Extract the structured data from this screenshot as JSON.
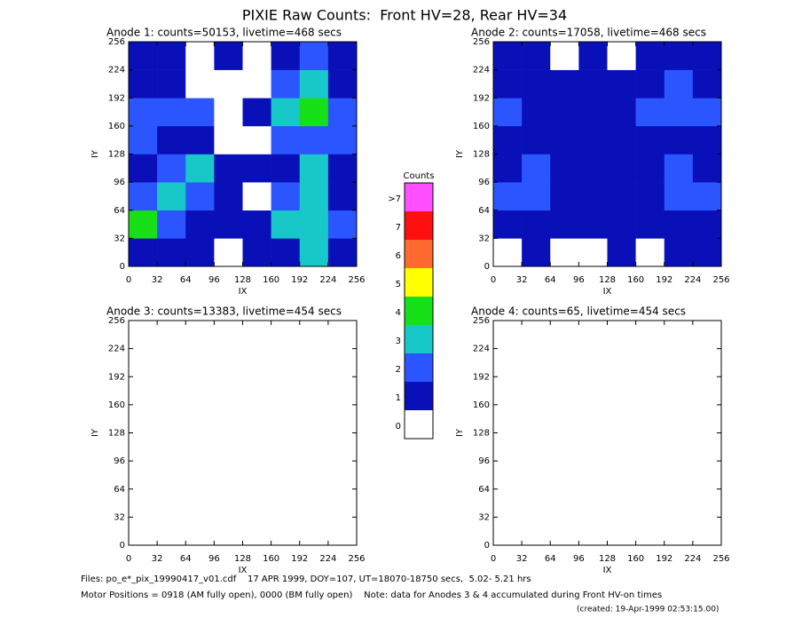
{
  "title": "PIXIE Raw Counts:  Front HV=28, Rear HV=34",
  "colorbar": {
    "title": "Counts",
    "labels": [
      0,
      1,
      2,
      3,
      4,
      5,
      6,
      7,
      ">7"
    ],
    "colors": [
      "#ffffff",
      "#0a10b8",
      "#2a55ff",
      "#18c8c8",
      "#18e018",
      "#ffff00",
      "#ff6a30",
      "#ff1010",
      "#ff50ff"
    ]
  },
  "chart_data": [
    {
      "type": "heatmap",
      "title": "Anode 1: counts=50153, livetime=468 secs",
      "xlabel": "IX",
      "ylabel": "IY",
      "xlim": [
        0,
        256
      ],
      "ylim": [
        0,
        256
      ],
      "xticks": [
        0,
        32,
        64,
        96,
        128,
        160,
        192,
        224,
        256
      ],
      "yticks": [
        0,
        32,
        64,
        96,
        128,
        160,
        192,
        224,
        256
      ],
      "z": [
        [
          1,
          1,
          1,
          0,
          1,
          1,
          3,
          1
        ],
        [
          4,
          2,
          1,
          1,
          1,
          3,
          3,
          2
        ],
        [
          2,
          3,
          2,
          1,
          0,
          2,
          3,
          1
        ],
        [
          1,
          2,
          3,
          1,
          1,
          1,
          3,
          1
        ],
        [
          2,
          1,
          1,
          0,
          0,
          2,
          2,
          2
        ],
        [
          2,
          2,
          2,
          0,
          1,
          3,
          4,
          2
        ],
        [
          1,
          1,
          0,
          0,
          0,
          2,
          3,
          1
        ],
        [
          1,
          1,
          0,
          1,
          0,
          1,
          2,
          1
        ]
      ]
    },
    {
      "type": "heatmap",
      "title": "Anode 2: counts=17058, livetime=468 secs",
      "xlabel": "IX",
      "ylabel": "IY",
      "xlim": [
        0,
        256
      ],
      "ylim": [
        0,
        256
      ],
      "xticks": [
        0,
        32,
        64,
        96,
        128,
        160,
        192,
        224,
        256
      ],
      "yticks": [
        0,
        32,
        64,
        96,
        128,
        160,
        192,
        224,
        256
      ],
      "z": [
        [
          0,
          1,
          0,
          0,
          1,
          0,
          1,
          1
        ],
        [
          1,
          1,
          1,
          1,
          1,
          1,
          1,
          1
        ],
        [
          2,
          2,
          1,
          1,
          1,
          1,
          2,
          2
        ],
        [
          1,
          2,
          1,
          1,
          1,
          1,
          2,
          1
        ],
        [
          1,
          1,
          1,
          1,
          1,
          1,
          1,
          1
        ],
        [
          2,
          1,
          1,
          1,
          1,
          2,
          2,
          2
        ],
        [
          1,
          1,
          1,
          1,
          1,
          1,
          2,
          1
        ],
        [
          1,
          1,
          0,
          1,
          0,
          1,
          1,
          1
        ]
      ]
    },
    {
      "type": "heatmap",
      "title": "Anode 3: counts=13383, livetime=454 secs",
      "xlabel": "IX",
      "ylabel": "IY",
      "xlim": [
        0,
        256
      ],
      "ylim": [
        0,
        256
      ],
      "xticks": [
        0,
        32,
        64,
        96,
        128,
        160,
        192,
        224,
        256
      ],
      "yticks": [
        0,
        32,
        64,
        96,
        128,
        160,
        192,
        224,
        256
      ],
      "z": [
        [
          0,
          0,
          0,
          0,
          0,
          0,
          0,
          0
        ],
        [
          0,
          0,
          0,
          0,
          0,
          0,
          0,
          0
        ],
        [
          0,
          0,
          0,
          0,
          0,
          0,
          0,
          0
        ],
        [
          0,
          0,
          0,
          0,
          0,
          0,
          0,
          0
        ],
        [
          0,
          0,
          0,
          0,
          0,
          0,
          0,
          0
        ],
        [
          0,
          0,
          0,
          0,
          0,
          0,
          0,
          0
        ],
        [
          0,
          0,
          0,
          0,
          0,
          0,
          0,
          0
        ],
        [
          0,
          0,
          0,
          0,
          0,
          0,
          0,
          0
        ]
      ]
    },
    {
      "type": "heatmap",
      "title": "Anode 4: counts=65, livetime=454 secs",
      "xlabel": "IX",
      "ylabel": "IY",
      "xlim": [
        0,
        256
      ],
      "ylim": [
        0,
        256
      ],
      "xticks": [
        0,
        32,
        64,
        96,
        128,
        160,
        192,
        224,
        256
      ],
      "yticks": [
        0,
        32,
        64,
        96,
        128,
        160,
        192,
        224,
        256
      ],
      "z": [
        [
          0,
          0,
          0,
          0,
          0,
          0,
          0,
          0
        ],
        [
          0,
          0,
          0,
          0,
          0,
          0,
          0,
          0
        ],
        [
          0,
          0,
          0,
          0,
          0,
          0,
          0,
          0
        ],
        [
          0,
          0,
          0,
          0,
          0,
          0,
          0,
          0
        ],
        [
          0,
          0,
          0,
          0,
          0,
          0,
          0,
          0
        ],
        [
          0,
          0,
          0,
          0,
          0,
          0,
          0,
          0
        ],
        [
          0,
          0,
          0,
          0,
          0,
          0,
          0,
          0
        ],
        [
          0,
          0,
          0,
          0,
          0,
          0,
          0,
          0
        ]
      ]
    }
  ],
  "footer": {
    "files": "Files: po_e*_pix_19990417_v01.cdf    17 APR 1999, DOY=107, UT=18070-18750 secs,  5.02- 5.21 hrs",
    "motor": "Motor Positions = 0918 (AM fully open), 0000 (BM fully open)    Note: data for Anodes 3 & 4 accumulated during Front HV-on times",
    "created": "(created: 19-Apr-1999 02:53:15.00)"
  }
}
